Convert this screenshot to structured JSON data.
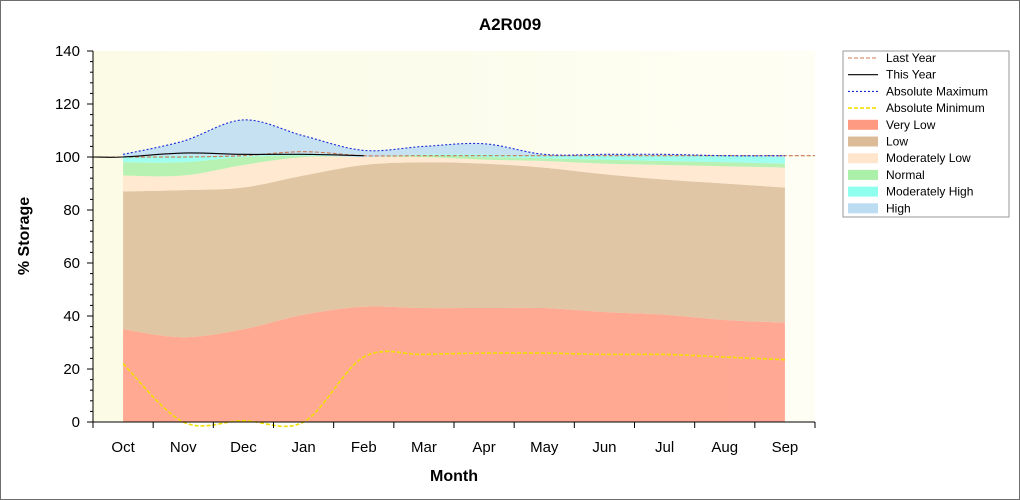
{
  "chart_data": {
    "type": "area",
    "title": "A2R009",
    "xlabel": "Month",
    "ylabel": "% Storage",
    "ylim": [
      0,
      140
    ],
    "yticks": [
      0,
      20,
      40,
      60,
      80,
      100,
      120,
      140
    ],
    "categories": [
      "Oct",
      "Nov",
      "Dec",
      "Jan",
      "Feb",
      "Mar",
      "Apr",
      "May",
      "Jun",
      "Jul",
      "Aug",
      "Sep"
    ],
    "grid": false,
    "legend_position": "right",
    "bands": [
      {
        "name": "Very Low",
        "color": "#ff9a82",
        "lower": [
          0,
          0,
          0,
          0,
          0,
          0,
          0,
          0,
          0,
          0,
          0,
          0
        ],
        "upper": [
          35,
          32,
          35,
          40.5,
          43.5,
          43,
          43,
          43,
          41.5,
          40.5,
          38.5,
          37.5
        ]
      },
      {
        "name": "Low",
        "color": "#dcbc98",
        "lower": [
          35,
          32,
          35,
          40.5,
          43.5,
          43,
          43,
          43,
          41.5,
          40.5,
          38.5,
          37.5
        ],
        "upper": [
          87,
          87.5,
          88.5,
          93,
          97,
          98,
          97.5,
          96,
          93.5,
          91.5,
          90,
          88.5
        ]
      },
      {
        "name": "Moderately Low",
        "color": "#ffe5cc",
        "lower": [
          87,
          87.5,
          88.5,
          93,
          97,
          98,
          97.5,
          96,
          93.5,
          91.5,
          90,
          88.5
        ],
        "upper": [
          93,
          93,
          97,
          100,
          100,
          100,
          99,
          98.5,
          97.5,
          97,
          96.5,
          96
        ]
      },
      {
        "name": "Normal",
        "color": "#aaf0a8",
        "lower": [
          93,
          93,
          97,
          100,
          100,
          100,
          99,
          98.5,
          97.5,
          97,
          96.5,
          96
        ],
        "upper": [
          98,
          98,
          100,
          100.5,
          100,
          100.5,
          100,
          99.5,
          99,
          98.5,
          98,
          97.5
        ]
      },
      {
        "name": "Moderately High",
        "color": "#8fffee",
        "lower": [
          98,
          98,
          100,
          100.5,
          100,
          100.5,
          100,
          99.5,
          99,
          98.5,
          98,
          97.5
        ],
        "upper": [
          100,
          100.5,
          100.5,
          101,
          100,
          101,
          101,
          100.5,
          100.5,
          100.5,
          100.5,
          100
        ]
      },
      {
        "name": "High",
        "color": "#bcdcf2",
        "lower": [
          100,
          100.5,
          100.5,
          101,
          100,
          101,
          101,
          100.5,
          100.5,
          100.5,
          100.5,
          100
        ],
        "upper": [
          101,
          106,
          114,
          108,
          102.5,
          104,
          105,
          101,
          101,
          101,
          100.5,
          100.5
        ]
      }
    ],
    "series": [
      {
        "name": "Last Year",
        "style": "dashed",
        "color": "#c87850",
        "x": [
          "Oct",
          "Nov",
          "Dec",
          "Jan",
          "Feb",
          "Mar",
          "Apr",
          "May",
          "Jun",
          "Jul",
          "Aug",
          "Sep"
        ],
        "values": [
          100,
          100,
          100.5,
          102,
          100.5,
          100.5,
          100.5,
          100.5,
          100.5,
          100.5,
          100.5,
          100.5
        ]
      },
      {
        "name": "This Year",
        "style": "solid",
        "color": "#000000",
        "x": [
          "Oct",
          "Nov",
          "Dec",
          "Jan",
          "Feb"
        ],
        "values": [
          100,
          101.5,
          101,
          101,
          100.5
        ]
      },
      {
        "name": "Absolute Maximum",
        "style": "dotted",
        "color": "#1a2ad8",
        "x": [
          "Oct",
          "Nov",
          "Dec",
          "Jan",
          "Feb",
          "Mar",
          "Apr",
          "May",
          "Jun",
          "Jul",
          "Aug",
          "Sep"
        ],
        "values": [
          101,
          106,
          114,
          108,
          102.5,
          104,
          105,
          101,
          101,
          101,
          100.5,
          100.5
        ]
      },
      {
        "name": "Absolute Minimum",
        "style": "dashed",
        "color": "#f0e000",
        "x": [
          "Oct",
          "Nov",
          "Dec",
          "Jan",
          "Feb",
          "Mar",
          "Apr",
          "May",
          "Jun",
          "Jul",
          "Aug",
          "Sep"
        ],
        "values": [
          22,
          0,
          0.5,
          0,
          24.5,
          25.5,
          26,
          26,
          25.5,
          25.5,
          24.5,
          23.5
        ]
      }
    ],
    "legend_entries": [
      {
        "label": "Last Year",
        "kind": "line",
        "style": "dashed",
        "color": "#c87850"
      },
      {
        "label": "This Year",
        "kind": "line",
        "style": "solid",
        "color": "#000000"
      },
      {
        "label": "Absolute Maximum",
        "kind": "line",
        "style": "dotted",
        "color": "#1a2ad8"
      },
      {
        "label": "Absolute Minimum",
        "kind": "line",
        "style": "dashed",
        "color": "#f0e000"
      },
      {
        "label": "Very Low",
        "kind": "fill",
        "color": "#ff9a82"
      },
      {
        "label": "Low",
        "kind": "fill",
        "color": "#dcbc98"
      },
      {
        "label": "Moderately Low",
        "kind": "fill",
        "color": "#ffe5cc"
      },
      {
        "label": "Normal",
        "kind": "fill",
        "color": "#aaf0a8"
      },
      {
        "label": "Moderately High",
        "kind": "fill",
        "color": "#8fffee"
      },
      {
        "label": "High",
        "kind": "fill",
        "color": "#bcdcf2"
      }
    ]
  }
}
